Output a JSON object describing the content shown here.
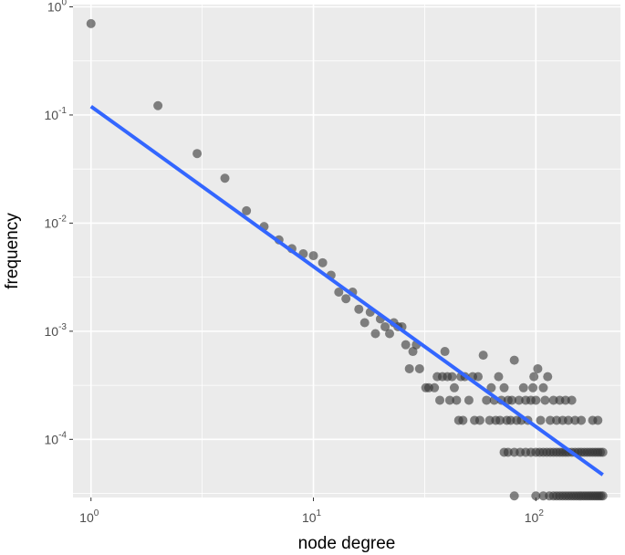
{
  "chart_data": {
    "type": "scatter",
    "title": "",
    "xlabel": "node degree",
    "ylabel": "frequency",
    "x_scale": "log10",
    "y_scale": "log10",
    "xlim": [
      0.83,
      240
    ],
    "ylim": [
      2.9e-05,
      1.05
    ],
    "x_ticks": [
      {
        "value": 1,
        "base": "10",
        "exp": "0"
      },
      {
        "value": 10,
        "base": "10",
        "exp": "1"
      },
      {
        "value": 100,
        "base": "10",
        "exp": "2"
      }
    ],
    "y_ticks": [
      {
        "value": 1,
        "base": "10",
        "exp": "0"
      },
      {
        "value": 0.1,
        "base": "10",
        "exp": "-1"
      },
      {
        "value": 0.01,
        "base": "10",
        "exp": "-2"
      },
      {
        "value": 0.001,
        "base": "10",
        "exp": "-3"
      },
      {
        "value": 0.0001,
        "base": "10",
        "exp": "-4"
      }
    ],
    "grid": true,
    "panel_color": "#ebebeb",
    "grid_color": "#ffffff",
    "point_color": "#333333",
    "line_color": "#3366ff",
    "fit_line": {
      "x": [
        1,
        200
      ],
      "y": [
        0.12,
        4.7e-05
      ]
    },
    "points": [
      [
        1,
        0.7
      ],
      [
        2,
        0.122
      ],
      [
        3,
        0.044
      ],
      [
        4,
        0.026
      ],
      [
        5,
        0.013
      ],
      [
        6,
        0.0093
      ],
      [
        7,
        0.007
      ],
      [
        8,
        0.0058
      ],
      [
        9,
        0.0052
      ],
      [
        10,
        0.005
      ],
      [
        11,
        0.0043
      ],
      [
        12,
        0.0033
      ],
      [
        13,
        0.0023
      ],
      [
        14,
        0.002
      ],
      [
        15,
        0.0023
      ],
      [
        16,
        0.0016
      ],
      [
        17,
        0.0012
      ],
      [
        18,
        0.0015
      ],
      [
        19,
        0.00095
      ],
      [
        20,
        0.0013
      ],
      [
        21,
        0.0011
      ],
      [
        22,
        0.00095
      ],
      [
        23,
        0.0012
      ],
      [
        24,
        0.0011
      ],
      [
        25,
        0.0011
      ],
      [
        26,
        0.00075
      ],
      [
        27,
        0.00045
      ],
      [
        28,
        0.00065
      ],
      [
        29,
        0.00075
      ],
      [
        30,
        0.00045
      ],
      [
        32,
        0.0003
      ],
      [
        33,
        0.0003
      ],
      [
        35,
        0.0003
      ],
      [
        36,
        0.00038
      ],
      [
        37,
        0.00023
      ],
      [
        38,
        0.00038
      ],
      [
        39,
        0.00065
      ],
      [
        40,
        0.00038
      ],
      [
        41,
        0.00023
      ],
      [
        42,
        0.00038
      ],
      [
        43,
        0.0003
      ],
      [
        44,
        0.00023
      ],
      [
        45,
        0.00015
      ],
      [
        46,
        0.00038
      ],
      [
        47,
        0.00015
      ],
      [
        48,
        0.00038
      ],
      [
        50,
        0.00023
      ],
      [
        52,
        0.00038
      ],
      [
        53,
        0.00015
      ],
      [
        55,
        0.00038
      ],
      [
        56,
        0.00015
      ],
      [
        58,
        0.0006
      ],
      [
        60,
        0.00023
      ],
      [
        62,
        0.00015
      ],
      [
        63,
        0.0003
      ],
      [
        65,
        0.00023
      ],
      [
        66,
        0.00015
      ],
      [
        68,
        0.00038
      ],
      [
        69,
        0.00015
      ],
      [
        70,
        0.00023
      ],
      [
        72,
        0.0003
      ],
      [
        74,
        0.00015
      ],
      [
        75,
        0.00023
      ],
      [
        77,
        0.00015
      ],
      [
        78,
        0.00023
      ],
      [
        80,
        0.00054
      ],
      [
        82,
        0.00015
      ],
      [
        84,
        0.00023
      ],
      [
        86,
        0.00015
      ],
      [
        88,
        0.0003
      ],
      [
        90,
        0.00023
      ],
      [
        92,
        0.00015
      ],
      [
        95,
        0.00023
      ],
      [
        97,
        0.0003
      ],
      [
        98,
        0.00038
      ],
      [
        100,
        0.00023
      ],
      [
        102,
        0.00045
      ],
      [
        105,
        0.00015
      ],
      [
        108,
        0.0003
      ],
      [
        110,
        0.00023
      ],
      [
        113,
        0.00038
      ],
      [
        116,
        0.00015
      ],
      [
        120,
        0.00023
      ],
      [
        124,
        0.00015
      ],
      [
        128,
        0.00023
      ],
      [
        132,
        0.00015
      ],
      [
        136,
        0.00023
      ],
      [
        140,
        0.00015
      ],
      [
        145,
        0.00023
      ],
      [
        150,
        0.00015
      ],
      [
        160,
        0.00015
      ],
      [
        180,
        0.00015
      ],
      [
        190,
        0.00015
      ],
      [
        72,
        7.6e-05
      ],
      [
        75,
        7.6e-05
      ],
      [
        80,
        7.6e-05
      ],
      [
        85,
        7.6e-05
      ],
      [
        90,
        7.6e-05
      ],
      [
        95,
        7.6e-05
      ],
      [
        100,
        7.6e-05
      ],
      [
        104,
        7.6e-05
      ],
      [
        108,
        7.6e-05
      ],
      [
        112,
        7.6e-05
      ],
      [
        116,
        7.6e-05
      ],
      [
        120,
        7.6e-05
      ],
      [
        124,
        7.6e-05
      ],
      [
        128,
        7.6e-05
      ],
      [
        132,
        7.6e-05
      ],
      [
        136,
        7.6e-05
      ],
      [
        140,
        7.6e-05
      ],
      [
        145,
        7.6e-05
      ],
      [
        150,
        7.6e-05
      ],
      [
        155,
        7.6e-05
      ],
      [
        160,
        7.6e-05
      ],
      [
        165,
        7.6e-05
      ],
      [
        170,
        7.6e-05
      ],
      [
        175,
        7.6e-05
      ],
      [
        180,
        7.6e-05
      ],
      [
        185,
        7.6e-05
      ],
      [
        190,
        7.6e-05
      ],
      [
        195,
        7.6e-05
      ],
      [
        200,
        7.6e-05
      ],
      [
        80,
        3e-05
      ],
      [
        100,
        3e-05
      ],
      [
        108,
        3e-05
      ],
      [
        115,
        3e-05
      ],
      [
        120,
        3e-05
      ],
      [
        124,
        3e-05
      ],
      [
        128,
        3e-05
      ],
      [
        132,
        3e-05
      ],
      [
        136,
        3e-05
      ],
      [
        140,
        3e-05
      ],
      [
        144,
        3e-05
      ],
      [
        148,
        3e-05
      ],
      [
        152,
        3e-05
      ],
      [
        156,
        3e-05
      ],
      [
        160,
        3e-05
      ],
      [
        164,
        3e-05
      ],
      [
        168,
        3e-05
      ],
      [
        172,
        3e-05
      ],
      [
        176,
        3e-05
      ],
      [
        180,
        3e-05
      ],
      [
        184,
        3e-05
      ],
      [
        188,
        3e-05
      ],
      [
        192,
        3e-05
      ],
      [
        196,
        3e-05
      ],
      [
        200,
        3e-05
      ]
    ]
  }
}
